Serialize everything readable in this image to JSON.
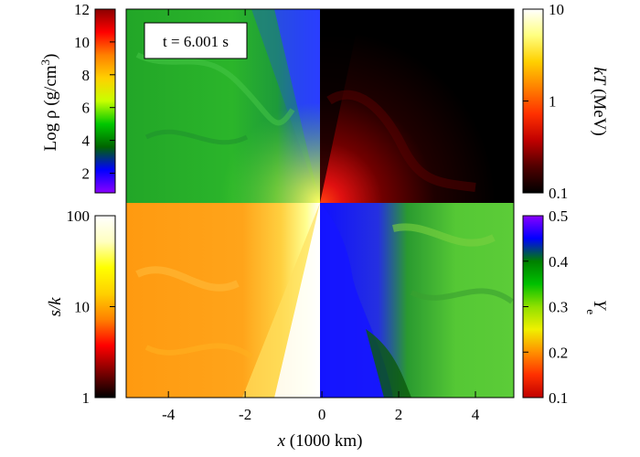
{
  "figure": {
    "time_label": "t = 6.001 s"
  },
  "chart_data": {
    "type": "heatmap",
    "x_axis": {
      "label_italic": "x",
      "label_rest": " (1000 km)",
      "range": [
        -5.1,
        5
      ],
      "ticks": [
        {
          "value": -4,
          "label": "-4"
        },
        {
          "value": -2,
          "label": "-2"
        },
        {
          "value": 0,
          "label": "0"
        },
        {
          "value": 2,
          "label": "2"
        },
        {
          "value": 4,
          "label": "4"
        }
      ]
    },
    "panels": [
      {
        "quadrant": "upper-left",
        "quantity": "density",
        "colorbar": "density"
      },
      {
        "quadrant": "upper-right",
        "quantity": "temperature",
        "colorbar": "temperature"
      },
      {
        "quadrant": "lower-left",
        "quantity": "entropy",
        "colorbar": "entropy"
      },
      {
        "quadrant": "lower-right",
        "quantity": "electron-fraction",
        "colorbar": "ye"
      }
    ],
    "colorbars": {
      "density": {
        "label_main": "Log ρ (g/cm",
        "label_sup": "3",
        "label_end": ")",
        "scale": "linear",
        "range": [
          0.8,
          12
        ],
        "ticks": [
          "2",
          "4",
          "6",
          "8",
          "10",
          "12"
        ],
        "tick_values": [
          2,
          4,
          6,
          8,
          10,
          12
        ],
        "colors": [
          "#8a00ff",
          "#0000ff",
          "#006400",
          "#00c800",
          "#c8ff00",
          "#ffd000",
          "#ff8000",
          "#ff0000",
          "#8b0000"
        ]
      },
      "temperature": {
        "label_italic": "kT",
        "label_rest": " (MeV)",
        "scale": "log",
        "range": [
          0.1,
          10
        ],
        "ticks": [
          "0.1",
          "1",
          "10"
        ],
        "tick_values": [
          0.1,
          1,
          10
        ],
        "colors": [
          "#000000",
          "#500000",
          "#c00000",
          "#ff3000",
          "#ff8000",
          "#ffd000",
          "#ffff80",
          "#ffffff"
        ]
      },
      "entropy": {
        "label_italic": "s/k",
        "scale": "log",
        "range": [
          1,
          100
        ],
        "ticks": [
          "1",
          "10",
          "100"
        ],
        "tick_values": [
          1,
          10,
          100
        ],
        "colors": [
          "#000000",
          "#800000",
          "#ff0000",
          "#ff8000",
          "#ffd000",
          "#ffff00",
          "#ffffc0",
          "#ffffff"
        ]
      },
      "ye": {
        "label_italic": "Y",
        "label_sub": "e",
        "scale": "linear",
        "range": [
          0.1,
          0.5
        ],
        "ticks": [
          "0.1",
          "0.2",
          "0.3",
          "0.4",
          "0.5"
        ],
        "tick_values": [
          0.1,
          0.2,
          0.3,
          0.4,
          0.5
        ],
        "colors": [
          "#c00000",
          "#ff3000",
          "#ff9000",
          "#f0f000",
          "#90e000",
          "#00c000",
          "#008000",
          "#0000ff",
          "#8a00ff"
        ]
      }
    }
  }
}
